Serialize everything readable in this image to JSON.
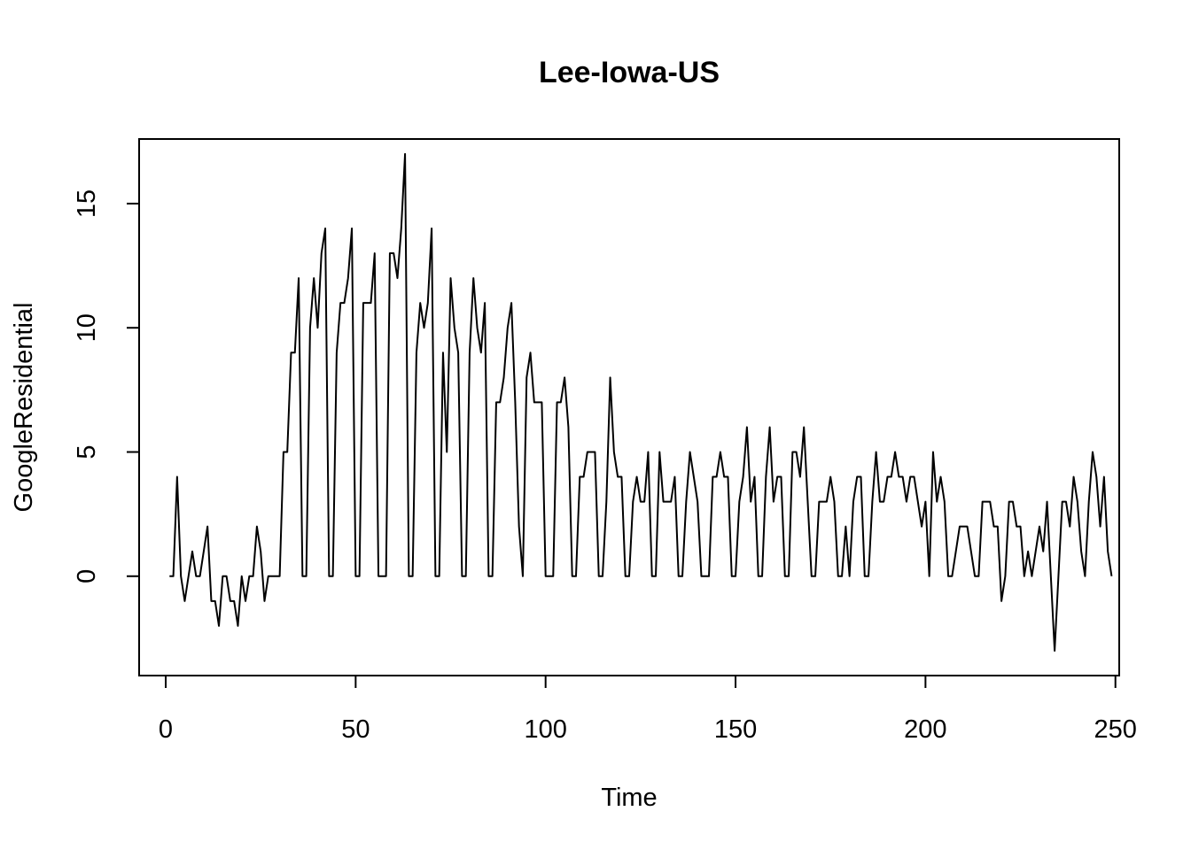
{
  "chart_data": {
    "type": "line",
    "title": "Lee-Iowa-US",
    "xlabel": "Time",
    "ylabel": "GoogleResidential",
    "xlim": [
      -7,
      251
    ],
    "ylim": [
      -4,
      17.6
    ],
    "x_ticks": [
      0,
      50,
      100,
      150,
      200,
      250
    ],
    "y_ticks": [
      0,
      5,
      10,
      15
    ],
    "grid": false,
    "series": [
      {
        "x_start": 1,
        "values": [
          0,
          0,
          4,
          0,
          -1,
          0,
          1,
          0,
          0,
          1,
          2,
          -1,
          -1,
          -2,
          0,
          0,
          -1,
          -1,
          -2,
          0,
          -1,
          0,
          0,
          2,
          1,
          -1,
          0,
          0,
          0,
          0,
          5,
          5,
          9,
          9,
          12,
          0,
          0,
          10,
          12,
          10,
          13,
          14,
          0,
          0,
          9,
          11,
          11,
          12,
          14,
          0,
          0,
          11,
          11,
          11,
          13,
          0,
          0,
          0,
          13,
          13,
          12,
          14,
          17,
          0,
          0,
          9,
          11,
          10,
          11,
          14,
          0,
          0,
          9,
          5,
          12,
          10,
          9,
          0,
          0,
          9,
          12,
          10,
          9,
          11,
          0,
          0,
          7,
          7,
          8,
          10,
          11,
          7,
          2,
          0,
          8,
          9,
          7,
          7,
          7,
          0,
          0,
          0,
          7,
          7,
          8,
          6,
          0,
          0,
          4,
          4,
          5,
          5,
          5,
          0,
          0,
          3,
          8,
          5,
          4,
          4,
          0,
          0,
          3,
          4,
          3,
          3,
          5,
          0,
          0,
          5,
          3,
          3,
          3,
          4,
          0,
          0,
          3,
          5,
          4,
          3,
          0,
          0,
          0,
          4,
          4,
          5,
          4,
          4,
          0,
          0,
          3,
          4,
          6,
          3,
          4,
          0,
          0,
          4,
          6,
          3,
          4,
          4,
          0,
          0,
          5,
          5,
          4,
          6,
          3,
          0,
          0,
          3,
          3,
          3,
          4,
          3,
          0,
          0,
          2,
          0,
          3,
          4,
          4,
          0,
          0,
          3,
          5,
          3,
          3,
          4,
          4,
          5,
          4,
          4,
          3,
          4,
          4,
          3,
          2,
          3,
          0,
          5,
          3,
          4,
          3,
          0,
          0,
          1,
          2,
          2,
          2,
          1,
          0,
          0,
          3,
          3,
          3,
          2,
          2,
          -1,
          0,
          3,
          3,
          2,
          2,
          0,
          1,
          0,
          1,
          2,
          1,
          3,
          0,
          -3,
          0,
          3,
          3,
          2,
          4,
          3,
          1,
          0,
          3,
          5,
          4,
          2,
          4,
          1,
          0
        ]
      }
    ]
  }
}
